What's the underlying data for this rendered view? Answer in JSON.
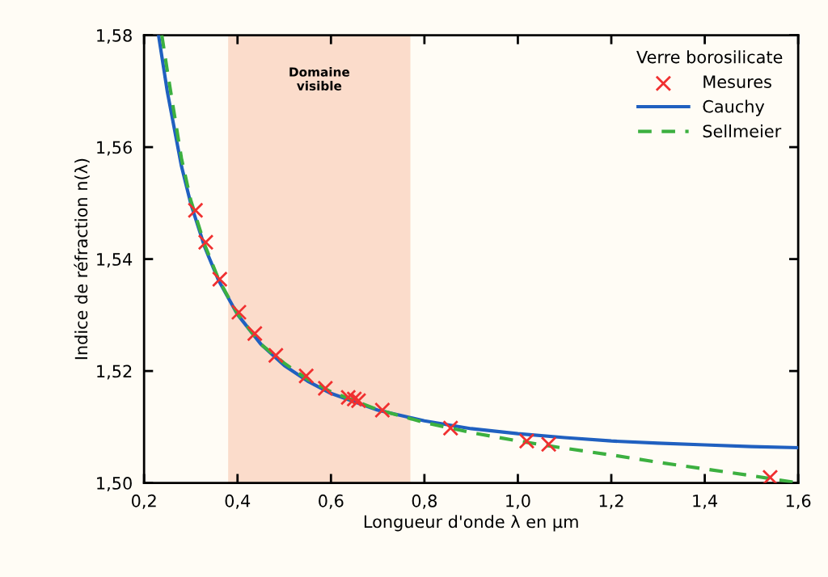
{
  "chart_data": {
    "type": "line",
    "xlabel": "Longueur d'onde λ en µm",
    "ylabel": "Indice de réfraction n(λ)",
    "legend_title": "Verre borosilicate",
    "xlim": [
      0.2,
      1.6
    ],
    "ylim": [
      1.5,
      1.58
    ],
    "xticks": [
      {
        "value": 0.2,
        "label": "0,2"
      },
      {
        "value": 0.4,
        "label": "0,4"
      },
      {
        "value": 0.6,
        "label": "0,6"
      },
      {
        "value": 0.8,
        "label": "0,8"
      },
      {
        "value": 1.0,
        "label": "1,0"
      },
      {
        "value": 1.2,
        "label": "1,2"
      },
      {
        "value": 1.4,
        "label": "1,4"
      },
      {
        "value": 1.6,
        "label": "1,6"
      }
    ],
    "yticks": [
      {
        "value": 1.5,
        "label": "1,50"
      },
      {
        "value": 1.52,
        "label": "1,52"
      },
      {
        "value": 1.54,
        "label": "1,54"
      },
      {
        "value": 1.56,
        "label": "1,56"
      },
      {
        "value": 1.58,
        "label": "1,58"
      }
    ],
    "grid": false,
    "legend": "top right",
    "bands": [
      {
        "axis": "x",
        "from": 0.38,
        "to": 0.77,
        "label": "Domaine\nvisible",
        "color": "#fbdccb"
      }
    ],
    "series": [
      {
        "name": "Mesures",
        "type": "scatter",
        "marker": "cross",
        "color": "#f03030",
        "x": [
          0.31,
          0.332,
          0.362,
          0.403,
          0.437,
          0.482,
          0.547,
          0.588,
          0.637,
          0.65,
          0.659,
          0.71,
          0.856,
          1.019,
          1.066,
          1.54
        ],
        "values": [
          1.5487,
          1.543,
          1.5364,
          1.5305,
          1.5267,
          1.5228,
          1.5191,
          1.5169,
          1.5153,
          1.515,
          1.5147,
          1.513,
          1.5098,
          1.5075,
          1.5069,
          1.501
        ]
      },
      {
        "name": "Cauchy",
        "line_style": "solid",
        "color": "#2060c0",
        "x": [
          0.231,
          0.25,
          0.28,
          0.3,
          0.33,
          0.36,
          0.4,
          0.45,
          0.5,
          0.55,
          0.6,
          0.7,
          0.8,
          0.9,
          1.0,
          1.1,
          1.2,
          1.3,
          1.4,
          1.5,
          1.6
        ],
        "values": [
          1.58,
          1.5698,
          1.5566,
          1.5499,
          1.5421,
          1.5361,
          1.5301,
          1.5248,
          1.521,
          1.5182,
          1.516,
          1.513,
          1.5111,
          1.5097,
          1.5088,
          1.5081,
          1.5075,
          1.5071,
          1.5068,
          1.5065,
          1.5063
        ]
      },
      {
        "name": "Sellmeier",
        "line_style": "dashed",
        "color": "#3cb040",
        "x": [
          0.238,
          0.25,
          0.28,
          0.3,
          0.33,
          0.36,
          0.4,
          0.45,
          0.5,
          0.55,
          0.6,
          0.7,
          0.8,
          0.9,
          1.0,
          1.1,
          1.2,
          1.3,
          1.4,
          1.5,
          1.6
        ],
        "values": [
          1.58,
          1.5735,
          1.558,
          1.5505,
          1.5425,
          1.5363,
          1.5302,
          1.5248,
          1.5214,
          1.5185,
          1.5163,
          1.5131,
          1.5108,
          1.509,
          1.5075,
          1.5062,
          1.505,
          1.5037,
          1.5025,
          1.5013,
          1.5
        ]
      }
    ]
  }
}
